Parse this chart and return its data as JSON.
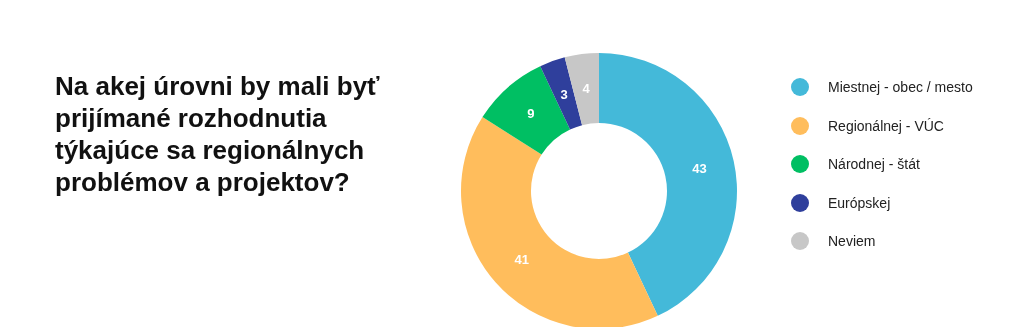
{
  "chart_data": {
    "type": "donut",
    "title": "Na akej úrovni by mali byť prijímané rozhodnutia týkajúce sa regionálnych problémov a projektov?",
    "categories": [
      "Miestnej - obec / mesto",
      "Regionálnej - VÚC",
      "Národnej - štát",
      "Európskej",
      "Neviem"
    ],
    "values": [
      43,
      41,
      9,
      3,
      4
    ],
    "colors": [
      "#44b9d9",
      "#ffbd5c",
      "#00bf63",
      "#2f3f9c",
      "#c7c7c7"
    ],
    "data_labels": true,
    "legend": "right"
  }
}
